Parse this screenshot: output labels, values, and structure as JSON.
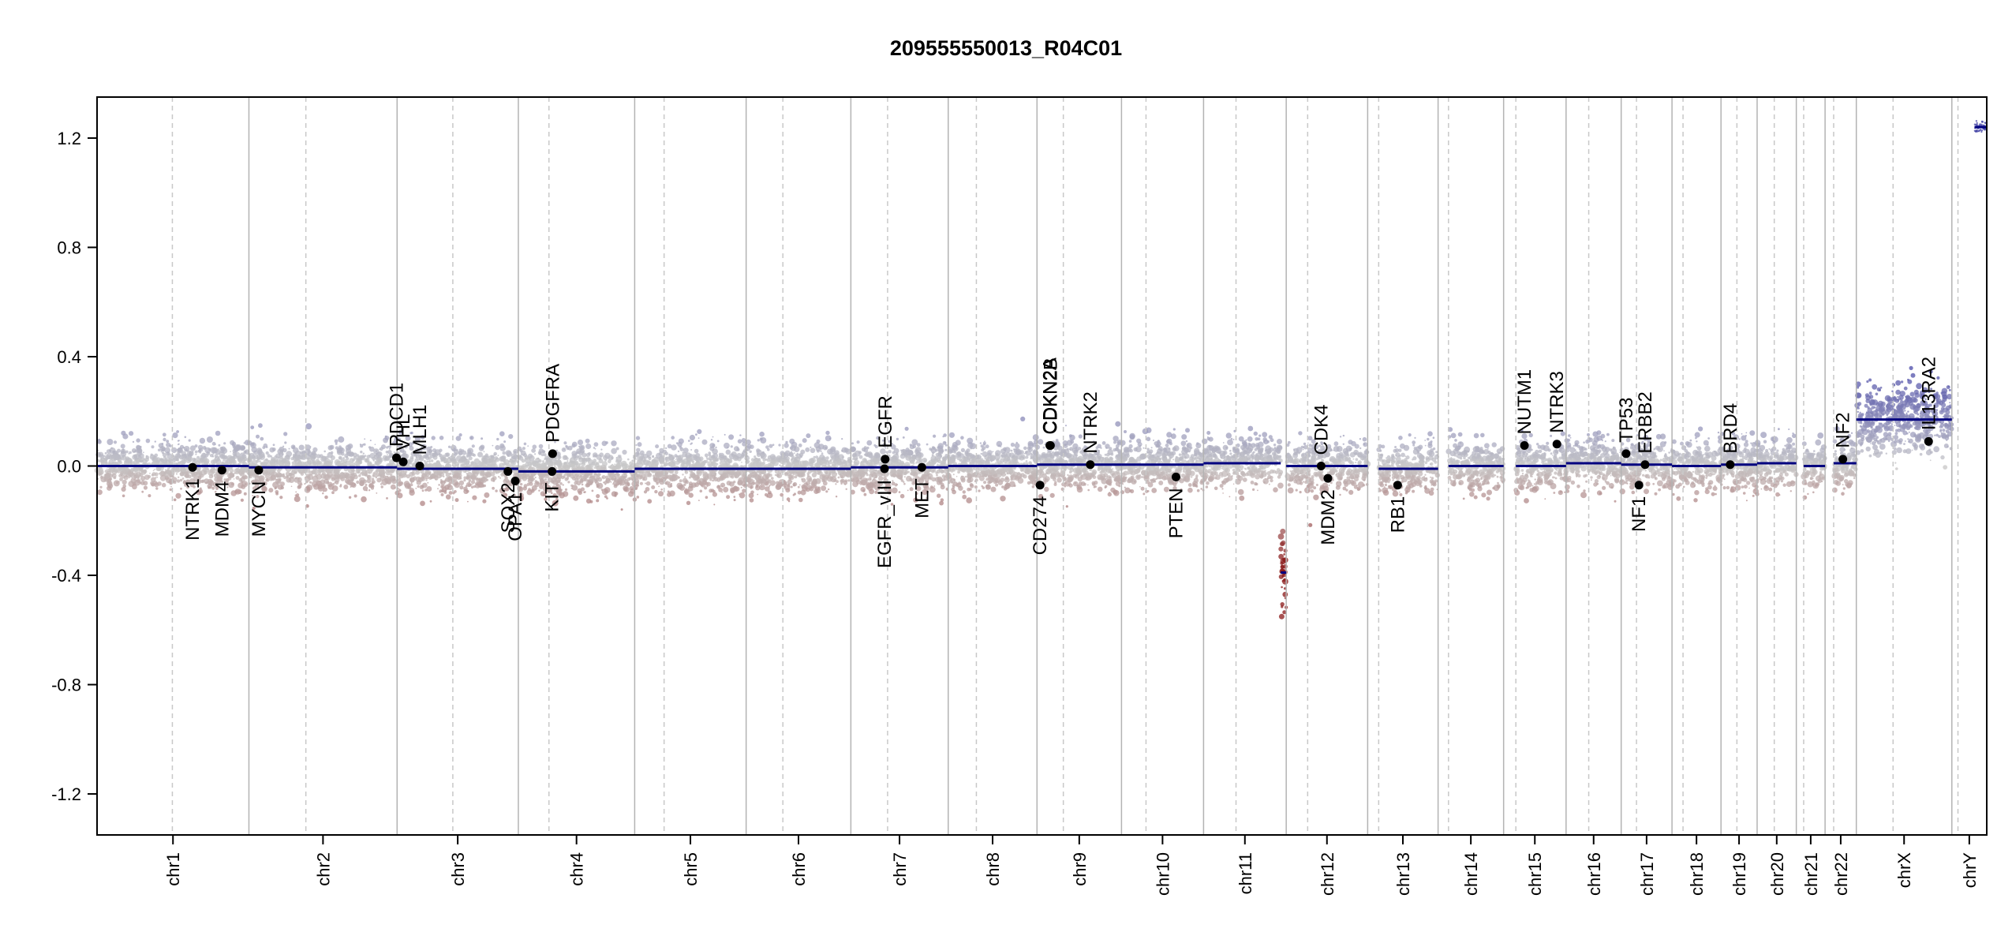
{
  "chart_data": {
    "type": "scatter",
    "title": "209555550013_R04C01",
    "xlabel": "",
    "ylabel": "",
    "ylim": [
      -1.35,
      1.35
    ],
    "yticks": [
      1.2,
      0.8,
      0.4,
      0.0,
      -0.4,
      -0.8,
      -1.2
    ],
    "ytick_labels": [
      "1.2",
      "0.8",
      "0.4",
      "0.0",
      "-0.4",
      "-0.8",
      "-1.2"
    ],
    "grid": false,
    "chromosomes": [
      {
        "name": "chr1",
        "start": 0,
        "end": 248,
        "centro": 123
      },
      {
        "name": "chr2",
        "start": 248,
        "end": 490,
        "centro": 341
      },
      {
        "name": "chr3",
        "start": 490,
        "end": 688,
        "centro": 581
      },
      {
        "name": "chr4",
        "start": 688,
        "end": 878,
        "centro": 738
      },
      {
        "name": "chr5",
        "start": 878,
        "end": 1060,
        "centro": 926
      },
      {
        "name": "chr6",
        "start": 1060,
        "end": 1231,
        "centro": 1120
      },
      {
        "name": "chr7",
        "start": 1231,
        "end": 1390,
        "centro": 1291
      },
      {
        "name": "chr8",
        "start": 1390,
        "end": 1535,
        "centro": 1436
      },
      {
        "name": "chr9",
        "start": 1535,
        "end": 1673,
        "centro": 1578
      },
      {
        "name": "chr10",
        "start": 1673,
        "end": 1807,
        "centro": 1713
      },
      {
        "name": "chr11",
        "start": 1807,
        "end": 1942,
        "centro": 1860
      },
      {
        "name": "chr12",
        "start": 1942,
        "end": 2075,
        "centro": 1977
      },
      {
        "name": "chr13",
        "start": 2075,
        "end": 2190,
        "centro": 2093
      },
      {
        "name": "chr14",
        "start": 2190,
        "end": 2297,
        "centro": 2207
      },
      {
        "name": "chr15",
        "start": 2297,
        "end": 2399,
        "centro": 2317
      },
      {
        "name": "chr16",
        "start": 2399,
        "end": 2489,
        "centro": 2436
      },
      {
        "name": "chr17",
        "start": 2489,
        "end": 2572,
        "centro": 2514
      },
      {
        "name": "chr18",
        "start": 2572,
        "end": 2652,
        "centro": 2590
      },
      {
        "name": "chr19",
        "start": 2652,
        "end": 2711,
        "centro": 2678
      },
      {
        "name": "chr20",
        "start": 2711,
        "end": 2775,
        "centro": 2739
      },
      {
        "name": "chr21",
        "start": 2775,
        "end": 2822,
        "centro": 2787
      },
      {
        "name": "chr22",
        "start": 2822,
        "end": 2873,
        "centro": 2836
      },
      {
        "name": "chrX",
        "start": 2873,
        "end": 3029,
        "centro": 2933
      },
      {
        "name": "chrY",
        "start": 3029,
        "end": 3086,
        "centro": 3039
      }
    ],
    "segments": [
      {
        "chr": "chr1",
        "start": 0,
        "end": 248,
        "value": 0.0
      },
      {
        "chr": "chr2",
        "start": 248,
        "end": 490,
        "value": -0.005
      },
      {
        "chr": "chr3",
        "start": 490,
        "end": 688,
        "value": -0.01
      },
      {
        "chr": "chr4",
        "start": 688,
        "end": 878,
        "value": -0.02
      },
      {
        "chr": "chr5",
        "start": 878,
        "end": 1060,
        "value": -0.01
      },
      {
        "chr": "chr6",
        "start": 1060,
        "end": 1231,
        "value": -0.01
      },
      {
        "chr": "chr7",
        "start": 1231,
        "end": 1390,
        "value": -0.005
      },
      {
        "chr": "chr8",
        "start": 1390,
        "end": 1535,
        "value": 0.0
      },
      {
        "chr": "chr9",
        "start": 1535,
        "end": 1673,
        "value": 0.005
      },
      {
        "chr": "chr10",
        "start": 1673,
        "end": 1807,
        "value": 0.005
      },
      {
        "chr": "chr11",
        "start": 1807,
        "end": 1933,
        "value": 0.01
      },
      {
        "chr": "chr11",
        "start": 1933,
        "end": 1942,
        "value": -0.39
      },
      {
        "chr": "chr12",
        "start": 1942,
        "end": 2075,
        "value": 0.0
      },
      {
        "chr": "chr13",
        "start": 2093,
        "end": 2190,
        "value": -0.01
      },
      {
        "chr": "chr14",
        "start": 2207,
        "end": 2297,
        "value": 0.0
      },
      {
        "chr": "chr15",
        "start": 2317,
        "end": 2399,
        "value": 0.0
      },
      {
        "chr": "chr16",
        "start": 2399,
        "end": 2489,
        "value": 0.01
      },
      {
        "chr": "chr17",
        "start": 2489,
        "end": 2572,
        "value": 0.005
      },
      {
        "chr": "chr18",
        "start": 2572,
        "end": 2652,
        "value": 0.0
      },
      {
        "chr": "chr19",
        "start": 2652,
        "end": 2711,
        "value": 0.005
      },
      {
        "chr": "chr20",
        "start": 2711,
        "end": 2775,
        "value": 0.01
      },
      {
        "chr": "chr21",
        "start": 2787,
        "end": 2822,
        "value": 0.0
      },
      {
        "chr": "chr22",
        "start": 2836,
        "end": 2873,
        "value": 0.01
      },
      {
        "chr": "chrX",
        "start": 2873,
        "end": 3029,
        "value": 0.17
      },
      {
        "chr": "chrY",
        "start": 3066,
        "end": 3086,
        "value": 1.24
      }
    ],
    "genes": [
      {
        "name": "NTRK1",
        "pos": 156,
        "value": -0.005,
        "label": "below"
      },
      {
        "name": "MDM4",
        "pos": 204,
        "value": -0.015,
        "label": "below"
      },
      {
        "name": "MYCN",
        "pos": 264,
        "value": -0.015,
        "label": "below"
      },
      {
        "name": "PDCD1",
        "pos": 489,
        "value": 0.03,
        "label": "above"
      },
      {
        "name": "VHL",
        "pos": 500,
        "value": 0.015,
        "label": "above"
      },
      {
        "name": "MLH1",
        "pos": 527,
        "value": 0.0,
        "label": "above"
      },
      {
        "name": "SOX2",
        "pos": 671,
        "value": -0.02,
        "label": "below"
      },
      {
        "name": "OPA1",
        "pos": 683,
        "value": -0.055,
        "label": "below"
      },
      {
        "name": "KIT",
        "pos": 743,
        "value": -0.02,
        "label": "below"
      },
      {
        "name": "PDGFRA",
        "pos": 744,
        "value": 0.045,
        "label": "above"
      },
      {
        "name": "EGFR_vIII",
        "pos": 1286,
        "value": -0.01,
        "label": "below"
      },
      {
        "name": "EGFR",
        "pos": 1287,
        "value": 0.025,
        "label": "above"
      },
      {
        "name": "MET",
        "pos": 1347,
        "value": -0.005,
        "label": "below"
      },
      {
        "name": "CD274",
        "pos": 1540,
        "value": -0.07,
        "label": "below"
      },
      {
        "name": "CDKN2A",
        "pos": 1556,
        "value": 0.075,
        "label": "above"
      },
      {
        "name": "CDKN2B",
        "pos": 1557,
        "value": 0.075,
        "label": "above"
      },
      {
        "name": "NTRK2",
        "pos": 1622,
        "value": 0.005,
        "label": "above"
      },
      {
        "name": "PTEN",
        "pos": 1762,
        "value": -0.04,
        "label": "below"
      },
      {
        "name": "CDK4",
        "pos": 1999,
        "value": 0.0,
        "label": "above"
      },
      {
        "name": "MDM2",
        "pos": 2010,
        "value": -0.045,
        "label": "below"
      },
      {
        "name": "RB1",
        "pos": 2124,
        "value": -0.07,
        "label": "below"
      },
      {
        "name": "NUTM1",
        "pos": 2331,
        "value": 0.075,
        "label": "above"
      },
      {
        "name": "NTRK3",
        "pos": 2384,
        "value": 0.08,
        "label": "above"
      },
      {
        "name": "TP53",
        "pos": 2497,
        "value": 0.045,
        "label": "above"
      },
      {
        "name": "NF1",
        "pos": 2518,
        "value": -0.07,
        "label": "below"
      },
      {
        "name": "ERBB2",
        "pos": 2528,
        "value": 0.005,
        "label": "above"
      },
      {
        "name": "BRD4",
        "pos": 2667,
        "value": 0.005,
        "label": "above"
      },
      {
        "name": "NF2",
        "pos": 2851,
        "value": 0.025,
        "label": "above"
      },
      {
        "name": "IL13RA2",
        "pos": 2991,
        "value": 0.09,
        "label": "above"
      }
    ],
    "colors": {
      "gain": "#4a4aa8",
      "loss": "#8b1a1a",
      "neutral": "#c8c8c8",
      "segment": "#00007f",
      "gene": "#000000",
      "chrBoundary": "#b3b3b3",
      "centromere": "#c8c8c8"
    }
  }
}
